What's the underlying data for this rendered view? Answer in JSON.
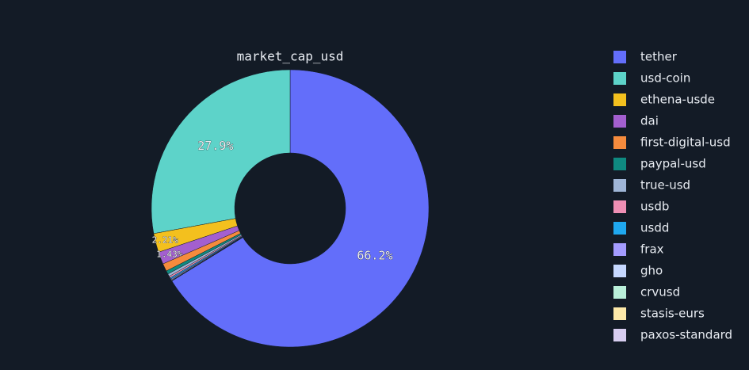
{
  "chart_data": {
    "type": "pie",
    "title": "market_cap_usd",
    "categories": [
      "tether",
      "usd-coin",
      "ethena-usde",
      "dai",
      "first-digital-usd",
      "paypal-usd",
      "true-usd",
      "usdb",
      "usdd",
      "frax",
      "gho",
      "crvusd",
      "stasis-eurs",
      "paxos-standard"
    ],
    "values": [
      66.2,
      27.9,
      2.21,
      1.43,
      0.9,
      0.4,
      0.3,
      0.2,
      0.15,
      0.1,
      0.08,
      0.05,
      0.02,
      0.01
    ],
    "value_labels": [
      "66.2%",
      "27.9%",
      "2.21%",
      "1.43%",
      null,
      null,
      null,
      null,
      null,
      null,
      null,
      null,
      null,
      null
    ],
    "colors": [
      "#636efa",
      "#5dd3c9",
      "#f3c01e",
      "#a35fcf",
      "#f58b3d",
      "#0f8a80",
      "#9fb5d6",
      "#ee8fb4",
      "#1fa8ef",
      "#a49cff",
      "#c6d8ff",
      "#b9efd9",
      "#fde9a9",
      "#d7cdef"
    ],
    "hole": 0.4
  }
}
